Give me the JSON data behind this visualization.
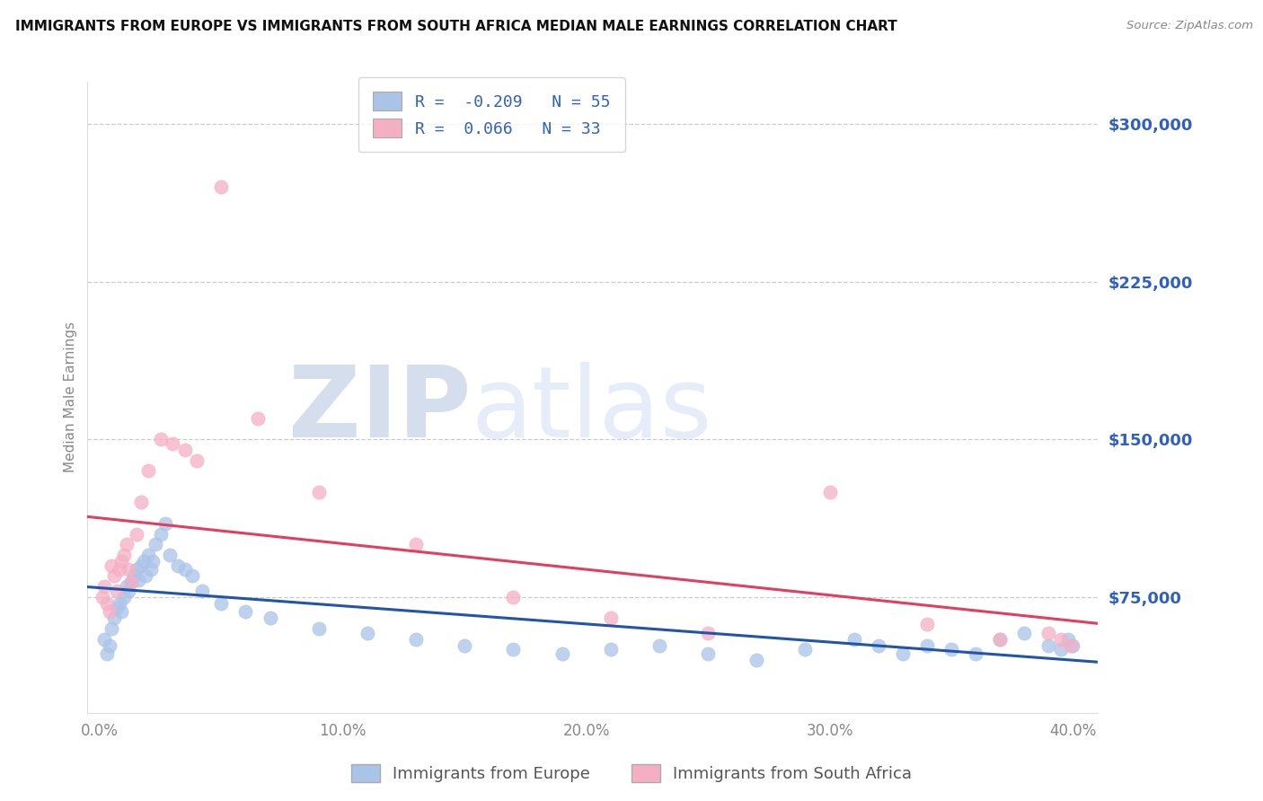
{
  "title": "IMMIGRANTS FROM EUROPE VS IMMIGRANTS FROM SOUTH AFRICA MEDIAN MALE EARNINGS CORRELATION CHART",
  "source": "Source: ZipAtlas.com",
  "ylabel": "Median Male Earnings",
  "legend_labels": [
    "Immigrants from Europe",
    "Immigrants from South Africa"
  ],
  "r_europe": -0.209,
  "n_europe": 55,
  "r_sa": 0.066,
  "n_sa": 33,
  "color_europe": "#aac4e8",
  "color_sa": "#f5afc4",
  "line_color_europe": "#2255aa",
  "line_color_sa": "#e04060",
  "title_color": "#111111",
  "axis_label_color": "#3060bf",
  "ytick_labels": [
    "$75,000",
    "$150,000",
    "$225,000",
    "$300,000"
  ],
  "ytick_values": [
    75000,
    150000,
    225000,
    300000
  ],
  "xtick_labels": [
    "0.0%",
    "10.0%",
    "20.0%",
    "30.0%",
    "40.0%"
  ],
  "xtick_values": [
    0.0,
    0.1,
    0.2,
    0.3,
    0.4
  ],
  "xlim": [
    -0.005,
    0.41
  ],
  "ylim": [
    20000,
    320000
  ],
  "background_color": "#ffffff",
  "grid_color": "#cccccc",
  "europe_x": [
    0.002,
    0.003,
    0.004,
    0.005,
    0.006,
    0.007,
    0.008,
    0.009,
    0.01,
    0.011,
    0.012,
    0.013,
    0.014,
    0.015,
    0.016,
    0.017,
    0.018,
    0.019,
    0.02,
    0.021,
    0.022,
    0.023,
    0.025,
    0.027,
    0.029,
    0.032,
    0.035,
    0.038,
    0.042,
    0.05,
    0.06,
    0.07,
    0.09,
    0.11,
    0.13,
    0.15,
    0.17,
    0.19,
    0.21,
    0.23,
    0.25,
    0.27,
    0.29,
    0.31,
    0.32,
    0.33,
    0.34,
    0.35,
    0.36,
    0.37,
    0.38,
    0.39,
    0.395,
    0.398,
    0.4
  ],
  "europe_y": [
    55000,
    48000,
    52000,
    60000,
    65000,
    70000,
    72000,
    68000,
    75000,
    80000,
    78000,
    82000,
    85000,
    88000,
    83000,
    90000,
    92000,
    85000,
    95000,
    88000,
    92000,
    100000,
    105000,
    110000,
    95000,
    90000,
    88000,
    85000,
    78000,
    72000,
    68000,
    65000,
    60000,
    58000,
    55000,
    52000,
    50000,
    48000,
    50000,
    52000,
    48000,
    45000,
    50000,
    55000,
    52000,
    48000,
    52000,
    50000,
    48000,
    55000,
    58000,
    52000,
    50000,
    55000,
    52000
  ],
  "sa_x": [
    0.001,
    0.002,
    0.003,
    0.004,
    0.005,
    0.006,
    0.007,
    0.008,
    0.009,
    0.01,
    0.011,
    0.012,
    0.013,
    0.015,
    0.017,
    0.02,
    0.025,
    0.03,
    0.035,
    0.04,
    0.05,
    0.065,
    0.09,
    0.13,
    0.17,
    0.21,
    0.25,
    0.3,
    0.34,
    0.37,
    0.39,
    0.395,
    0.399
  ],
  "sa_y": [
    75000,
    80000,
    72000,
    68000,
    90000,
    85000,
    78000,
    88000,
    92000,
    95000,
    100000,
    88000,
    82000,
    105000,
    120000,
    135000,
    150000,
    148000,
    145000,
    140000,
    270000,
    160000,
    125000,
    100000,
    75000,
    65000,
    58000,
    125000,
    62000,
    55000,
    58000,
    55000,
    52000
  ]
}
